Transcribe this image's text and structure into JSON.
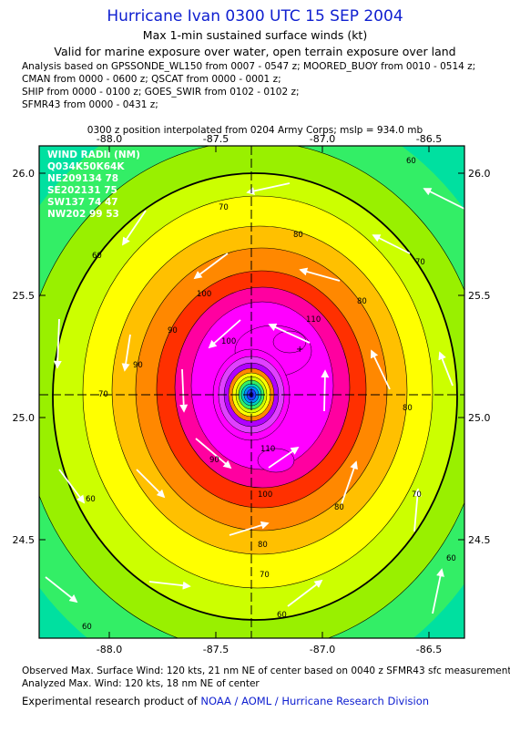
{
  "title": "Hurricane Ivan 0300 UTC 15 SEP 2004",
  "subtitle1": "Max 1-min sustained surface winds (kt)",
  "subtitle2": "Valid for marine exposure over water, open terrain exposure over land",
  "analysis_lines": [
    "Analysis based on  GPSSONDE_WL150 from 0007 - 0547 z;  MOORED_BUOY from 0010 - 0514 z;",
    "CMAN from 0000 - 0600 z;  QSCAT from 0000 - 0001 z;",
    "SHIP from 0000 - 0100 z;  GOES_SWIR from 0102 - 0102 z;",
    "SFMR43 from 0000 - 0431 z;"
  ],
  "position_note": "0300 z position interpolated from 0204 Army Corps; mslp = 934.0 mb",
  "x_ticks": [
    "-88.0",
    "-87.5",
    "-87.0",
    "-86.5"
  ],
  "y_ticks": [
    "26.0",
    "25.5",
    "25.0",
    "24.5"
  ],
  "wind_radii": {
    "header": "WIND RADII (NM)",
    "columns": "Q034K50K64K",
    "rows": [
      "NE209134  78",
      "SE202131  75",
      "SW137  74  47",
      "NW202  99  53"
    ]
  },
  "contour_labels": [
    "60",
    "70",
    "80",
    "90",
    "100",
    "110",
    "60",
    "70",
    "80",
    "90",
    "100",
    "60",
    "70",
    "80",
    "90",
    "100",
    "110",
    "70",
    "80",
    "60",
    "60",
    "70",
    "80",
    "60"
  ],
  "footer": {
    "observed": "Observed Max. Surface Wind: 120 kts, 21 nm NE of center based on 0040 z SFMR43 sfc measurement",
    "analyzed": "Analyzed Max. Wind: 120 kts, 18 nm NE of center",
    "credit_prefix": "Experimental research product of ",
    "credit_org": "NOAA / AOML / Hurricane Research Division"
  },
  "colors": {
    "title": "#1020d0",
    "levels": [
      "#00e0a0",
      "#33ee66",
      "#99f000",
      "#ccff00",
      "#ffff00",
      "#ffc000",
      "#ff8800",
      "#ff3000",
      "#ff00a0",
      "#ff00ff",
      "#e040ff",
      "#b000ff"
    ]
  }
}
